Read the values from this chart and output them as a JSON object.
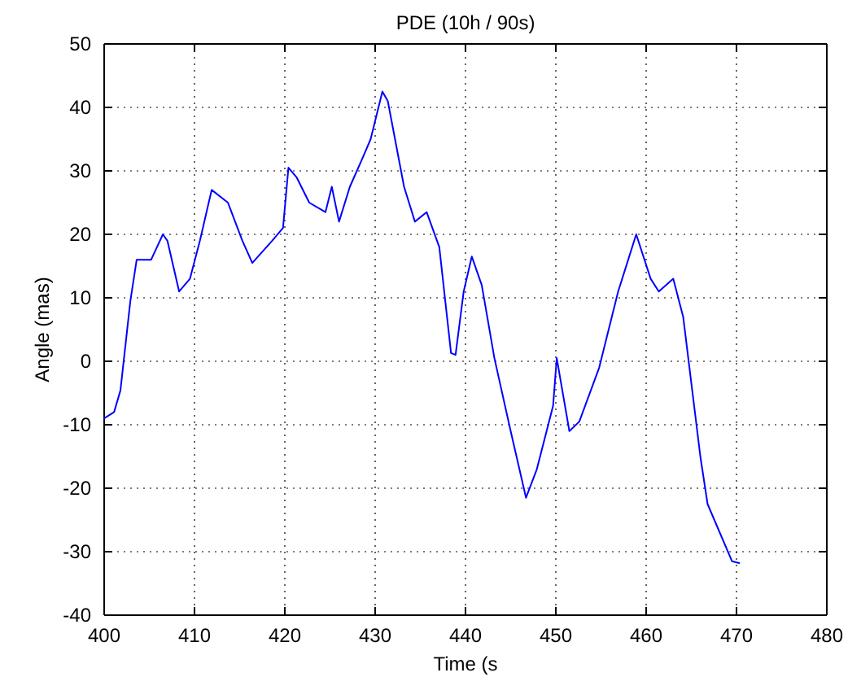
{
  "chart_data": {
    "type": "line",
    "title": "PDE (10h / 90s)",
    "xlabel": "Time (s",
    "ylabel": "Angle (mas)",
    "xlim": [
      400,
      480
    ],
    "xticks": [
      400,
      410,
      420,
      430,
      440,
      450,
      460,
      470,
      480
    ],
    "ylim": [
      -40,
      50
    ],
    "yticks": [
      -40,
      -30,
      -20,
      -10,
      0,
      10,
      20,
      30,
      40,
      50
    ],
    "grid": true,
    "series": [
      {
        "color": "#0000ff",
        "x": [
          400,
          401.1,
          401.8,
          402.9,
          403.6,
          405.2,
          406.5,
          407,
          408.3,
          409.5,
          410.6,
          411.9,
          413.7,
          415.3,
          416.4,
          418.6,
          419.8,
          420.4,
          421.3,
          422.7,
          424.5,
          425.2,
          426,
          427.2,
          428.6,
          429.5,
          430.8,
          431.4,
          433.2,
          434.4,
          435.7,
          437.1,
          438.4,
          438.9,
          439.8,
          440.7,
          441.8,
          443.2,
          445,
          446.7,
          447.9,
          449.7,
          450.1,
          451.5,
          452.6,
          454.8,
          456.9,
          458.9,
          460.5,
          461.4,
          463,
          464.1,
          466,
          466.8,
          469.5,
          470.3
        ],
        "values": [
          -9,
          -8,
          -4.6,
          9.5,
          16,
          16,
          20,
          19,
          11,
          13,
          19,
          27,
          25,
          19,
          15.5,
          19,
          21,
          30.5,
          29,
          25,
          23.5,
          27.5,
          22,
          27.5,
          32,
          35,
          42.5,
          41,
          27.5,
          22,
          23.5,
          18,
          1.3,
          1,
          11,
          16.5,
          12,
          0.5,
          -11,
          -21.5,
          -17,
          -7,
          0.5,
          -11,
          -9.5,
          -1,
          11,
          20,
          13,
          11,
          13,
          7,
          -15,
          -22.5,
          -31.5,
          -31.8
        ]
      }
    ]
  }
}
